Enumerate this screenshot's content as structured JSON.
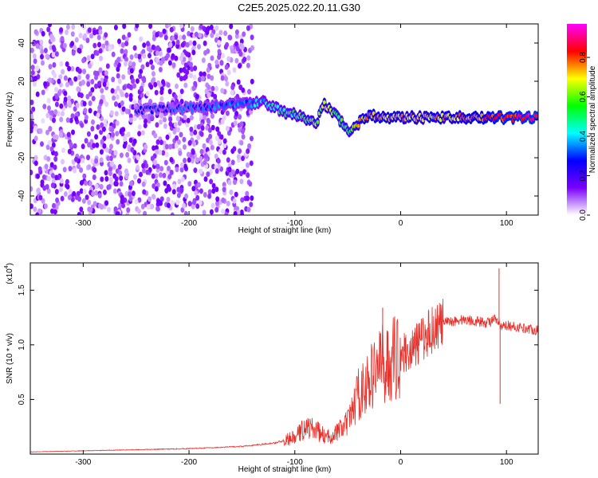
{
  "title": "C2E5.2025.022.20.11.G30",
  "chart_data": [
    {
      "type": "heatmap",
      "xlabel": "Height of straight line (km)",
      "ylabel": "Frequency (Hz)",
      "xlim": [
        -350,
        130
      ],
      "ylim": [
        -50,
        50
      ],
      "xticks": [
        -300,
        -200,
        -100,
        0,
        100
      ],
      "yticks": [
        -40,
        -20,
        0,
        20,
        40
      ],
      "colorbar": {
        "label": "Normalized spectral amplitude",
        "range": [
          0,
          0.97
        ],
        "ticks": [
          0.0,
          0.2,
          0.4,
          0.6,
          0.8
        ],
        "tick_labels": [
          "0.0",
          "0.2",
          "0.4",
          "0.6",
          "0.8"
        ],
        "colors": [
          "#ffffff",
          "#7a00ff",
          "#0000ff",
          "#00ffff",
          "#00ff00",
          "#ffff00",
          "#ff0000",
          "#ff00ff"
        ]
      },
      "noise_region_x": [
        -350,
        -140
      ],
      "signal_track": [
        {
          "x": -250,
          "f": 5,
          "amp": 0.25
        },
        {
          "x": -200,
          "f": 6,
          "amp": 0.3
        },
        {
          "x": -150,
          "f": 8,
          "amp": 0.35
        },
        {
          "x": -130,
          "f": 9,
          "amp": 0.4
        },
        {
          "x": -110,
          "f": 4,
          "amp": 0.5
        },
        {
          "x": -95,
          "f": 2,
          "amp": 0.55
        },
        {
          "x": -80,
          "f": -2,
          "amp": 0.6
        },
        {
          "x": -72,
          "f": 8,
          "amp": 0.7
        },
        {
          "x": -60,
          "f": 2,
          "amp": 0.6
        },
        {
          "x": -50,
          "f": -6,
          "amp": 0.55
        },
        {
          "x": -40,
          "f": -2,
          "amp": 0.7
        },
        {
          "x": -30,
          "f": 2,
          "amp": 0.8
        },
        {
          "x": 0,
          "f": 1,
          "amp": 0.75
        },
        {
          "x": 50,
          "f": 1,
          "amp": 0.75
        },
        {
          "x": 90,
          "f": 1,
          "amp": 0.85
        },
        {
          "x": 130,
          "f": 1,
          "amp": 0.9
        }
      ]
    },
    {
      "type": "line",
      "xlabel": "Height of straight line (km)",
      "ylabel": "SNR (10 * v/v)",
      "y_multiplier_label": "(x10",
      "y_multiplier_exp": "4",
      "y_multiplier_close": ")",
      "xlim": [
        -350,
        130
      ],
      "ylim": [
        0,
        17500
      ],
      "xticks": [
        -300,
        -200,
        -100,
        0,
        100
      ],
      "yticks": [
        5000,
        10000,
        15000
      ],
      "ytick_labels": [
        "0.5",
        "1.0",
        "1.5"
      ],
      "series": [
        {
          "color": "#e8302a",
          "x": [
            -350,
            -300,
            -250,
            -200,
            -150,
            -120,
            -100,
            -90,
            -80,
            -70,
            -60,
            -50,
            -40,
            -30,
            -20,
            -15,
            -10,
            0,
            10,
            20,
            30,
            40,
            50,
            60,
            70,
            80,
            88,
            93,
            95,
            100,
            110,
            120,
            130
          ],
          "y": [
            200,
            300,
            400,
            500,
            700,
            1000,
            1500,
            2500,
            2200,
            1500,
            2000,
            2800,
            5500,
            6500,
            8500,
            8000,
            8500,
            9200,
            9500,
            10500,
            11500,
            12000,
            12200,
            12300,
            12200,
            12000,
            12300,
            12000,
            11500,
            11800,
            11600,
            11500,
            11300
          ]
        }
      ],
      "spikes": [
        {
          "x": -17,
          "y": 13400
        },
        {
          "x": 93,
          "y": 17000
        },
        {
          "x": 94,
          "y": 4600
        }
      ]
    }
  ]
}
